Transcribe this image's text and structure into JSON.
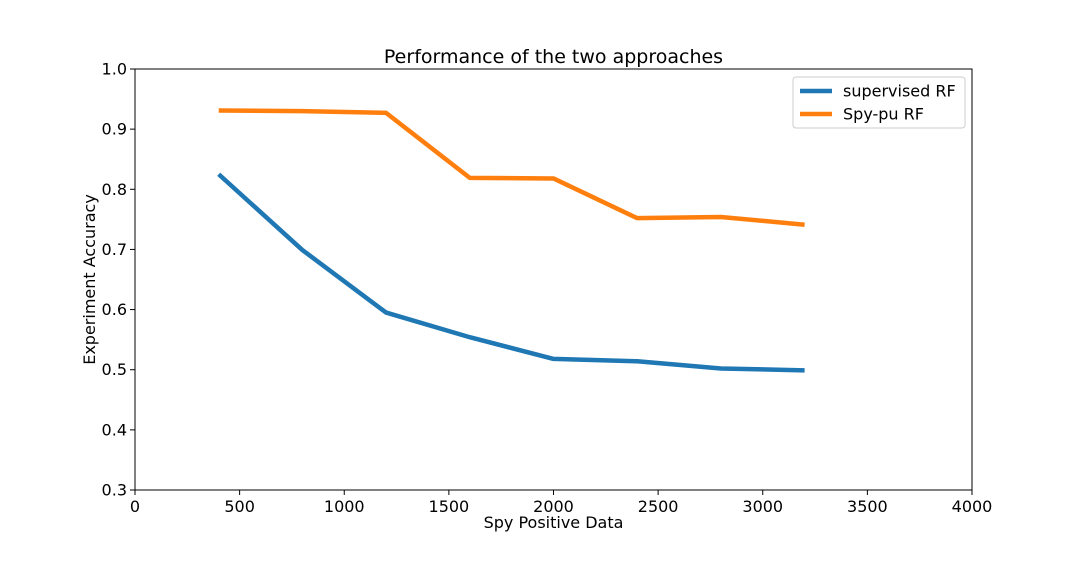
{
  "chart_data": {
    "type": "line",
    "title": "Performance of the two approaches",
    "xlabel": "Spy Positive Data",
    "ylabel": "Experiment Accuracy",
    "xlim": [
      0,
      4000
    ],
    "ylim": [
      0.3,
      1.0
    ],
    "xticks": [
      0,
      500,
      1000,
      1500,
      2000,
      2500,
      3000,
      3500,
      4000
    ],
    "yticks": [
      0.3,
      0.4,
      0.5,
      0.6,
      0.7,
      0.8,
      0.9,
      1.0
    ],
    "xtick_labels": [
      "0",
      "500",
      "1000",
      "1500",
      "2000",
      "2500",
      "3000",
      "3500",
      "4000"
    ],
    "ytick_labels": [
      "0.3",
      "0.4",
      "0.5",
      "0.6",
      "0.7",
      "0.8",
      "0.9",
      "1.0"
    ],
    "grid": false,
    "legend_position": "top-right",
    "x": [
      400,
      800,
      1200,
      1600,
      2000,
      2400,
      2800,
      3200
    ],
    "series": [
      {
        "name": "supervised RF",
        "color": "#1f77b4",
        "values": [
          0.825,
          0.699,
          0.595,
          0.554,
          0.518,
          0.514,
          0.502,
          0.499
        ]
      },
      {
        "name": "Spy-pu RF",
        "color": "#ff7f0e",
        "values": [
          0.931,
          0.93,
          0.927,
          0.819,
          0.818,
          0.752,
          0.754,
          0.741
        ]
      }
    ]
  }
}
